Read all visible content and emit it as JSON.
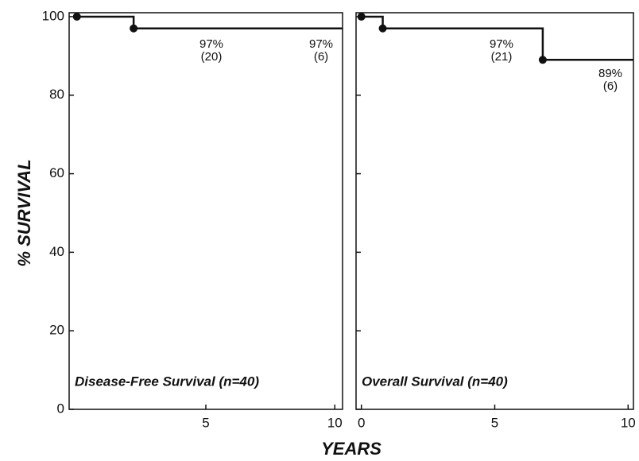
{
  "xlabel": "YEARS",
  "ylabel": "% SURVIVAL",
  "chart_data": [
    {
      "type": "step",
      "title": "Disease-Free Survival (n=40)",
      "xlim": [
        -0.3,
        10.3
      ],
      "ylim": [
        0,
        101
      ],
      "xticks": [
        5,
        10
      ],
      "yticks": [
        0,
        20,
        40,
        60,
        80,
        100
      ],
      "color": "#111111",
      "x": [
        0,
        2.2,
        10.3
      ],
      "values": [
        100,
        97,
        97
      ],
      "points": {
        "x": [
          0,
          2.2
        ],
        "values": [
          100,
          97
        ]
      },
      "annotations": [
        [
          "97%",
          "(20)"
        ],
        [
          "97%",
          "(6)"
        ]
      ]
    },
    {
      "type": "step",
      "title": "Overall Survival (n=40)",
      "xlim": [
        -0.2,
        10.2
      ],
      "ylim": [
        0,
        101
      ],
      "xticks": [
        0,
        5,
        10
      ],
      "color": "#111111",
      "x": [
        0,
        0.8,
        6.8,
        10.2
      ],
      "values": [
        100,
        97,
        89,
        89
      ],
      "points": {
        "x": [
          0,
          0.8,
          6.8
        ],
        "values": [
          100,
          97,
          89
        ]
      },
      "annotations": [
        [
          "97%",
          "(21)"
        ],
        [
          "89%",
          "(6)"
        ]
      ]
    }
  ]
}
